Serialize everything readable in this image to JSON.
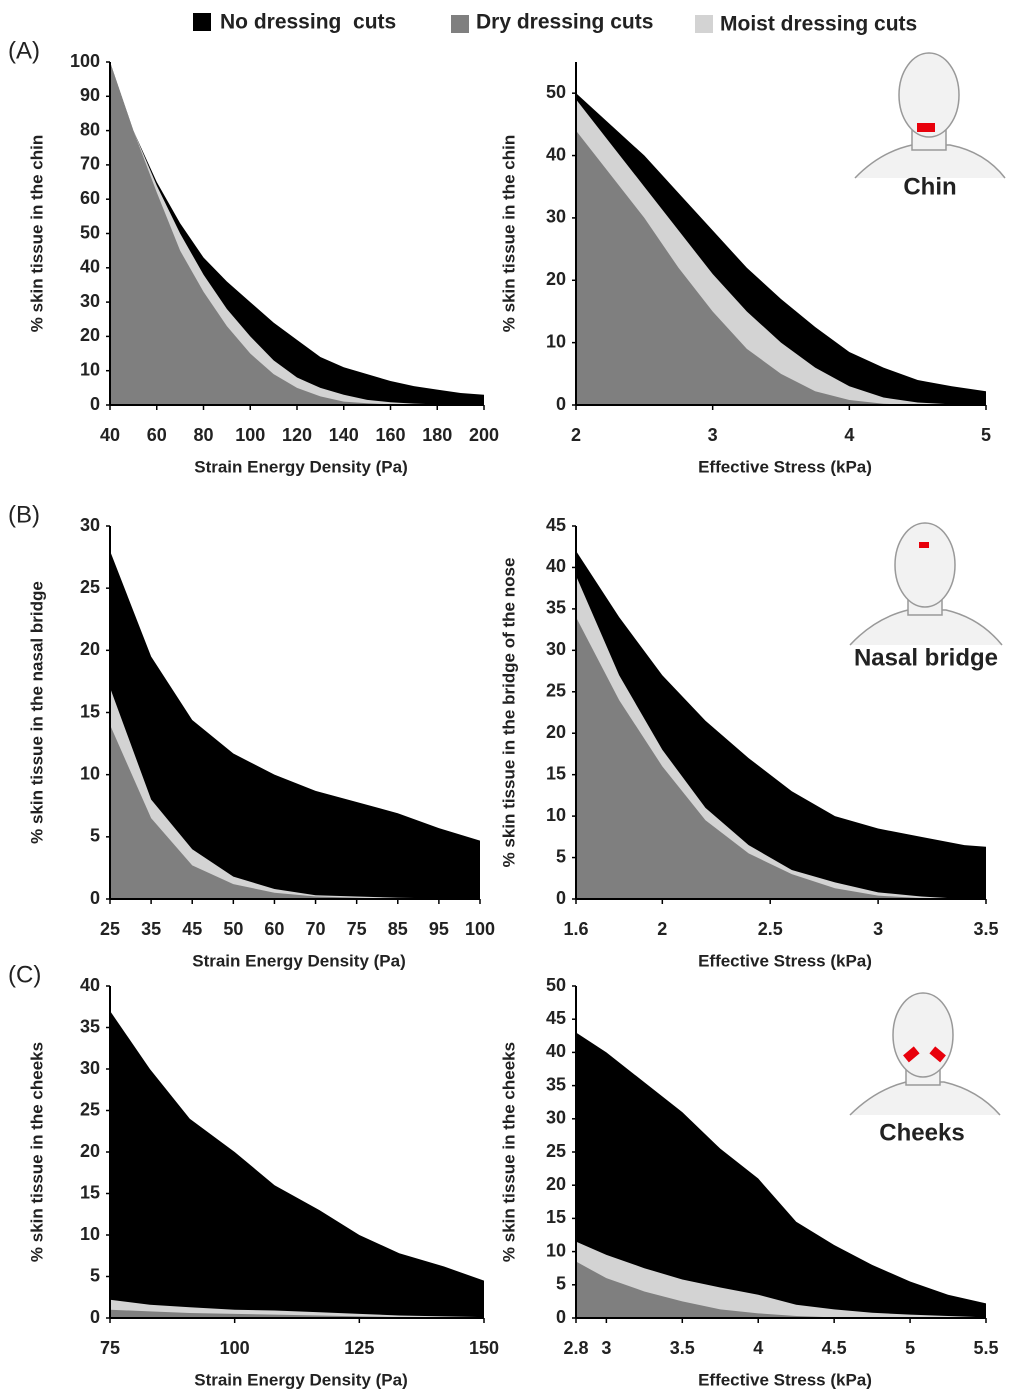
{
  "chart_data": [
    {
      "type": "area",
      "panel_label": "(A)",
      "xlabel": "Strain Energy Density (Pa)",
      "ylabel": "% skin tissue in the chin",
      "x": [
        40,
        50,
        60,
        70,
        80,
        90,
        100,
        110,
        120,
        130,
        140,
        150,
        160,
        170,
        180,
        190,
        200
      ],
      "series": [
        {
          "name": "No dressing  cuts",
          "color": "#000000",
          "values": [
            100,
            80,
            65,
            53,
            43,
            36,
            30,
            24,
            19,
            14,
            11,
            9,
            7,
            5.5,
            4.5,
            3.5,
            3
          ]
        },
        {
          "name": "Dry dressing cuts",
          "color": "#7f7f7f",
          "values": [
            100,
            80,
            62,
            45,
            33,
            23,
            15,
            9,
            5,
            2.5,
            1,
            0.5,
            0.2,
            0,
            0,
            0,
            0
          ]
        },
        {
          "name": "Moist dressing cuts",
          "color": "#d3d3d3",
          "values": [
            100,
            80,
            64,
            50,
            38,
            28,
            20,
            13,
            8,
            5,
            3,
            1.5,
            0.8,
            0.4,
            0.2,
            0.1,
            0
          ]
        }
      ],
      "xlim": [
        40,
        200
      ],
      "xticks": [
        40,
        60,
        80,
        100,
        120,
        140,
        160,
        180,
        200
      ],
      "ylim": [
        0,
        100
      ],
      "yticks": [
        0,
        10,
        20,
        30,
        40,
        50,
        60,
        70,
        80,
        90,
        100
      ],
      "grid": false
    },
    {
      "type": "area",
      "xlabel": "Effective Stress (kPa)",
      "ylabel": "% skin tissue in the chin",
      "annotation": "Chin",
      "x": [
        2,
        2.25,
        2.5,
        2.75,
        3,
        3.25,
        3.5,
        3.75,
        4,
        4.25,
        4.5,
        4.75,
        5
      ],
      "series": [
        {
          "name": "No dressing  cuts",
          "color": "#000000",
          "values": [
            50,
            45,
            40,
            34,
            28,
            22,
            17,
            12.5,
            8.5,
            6,
            4,
            3,
            2.2
          ]
        },
        {
          "name": "Dry dressing cuts",
          "color": "#7f7f7f",
          "values": [
            44,
            37,
            30,
            22,
            15,
            9,
            5,
            2.2,
            0.8,
            0.2,
            0,
            0,
            0
          ]
        },
        {
          "name": "Moist dressing cuts",
          "color": "#d3d3d3",
          "values": [
            49,
            42,
            35,
            28,
            21,
            15,
            10,
            6,
            3,
            1.2,
            0.4,
            0.1,
            0
          ]
        }
      ],
      "xlim": [
        2,
        5
      ],
      "xticks": [
        2,
        3,
        4,
        5
      ],
      "ylim": [
        0,
        55
      ],
      "yticks": [
        0,
        10,
        20,
        30,
        40,
        50
      ],
      "grid": false
    },
    {
      "type": "area",
      "panel_label": "(B)",
      "xlabel": "Strain Energy Density (Pa)",
      "ylabel": "% skin tissue in the nasal bridge",
      "categories": [
        "25",
        "35",
        "45",
        "50",
        "60",
        "70",
        "75",
        "85",
        "95",
        "100"
      ],
      "series": [
        {
          "name": "No dressing  cuts",
          "color": "#000000",
          "values": [
            28,
            19.5,
            14.4,
            11.7,
            10,
            8.7,
            7.8,
            6.9,
            5.7,
            4.7
          ]
        },
        {
          "name": "Dry dressing cuts",
          "color": "#7f7f7f",
          "values": [
            14,
            6.5,
            2.7,
            1.2,
            0.5,
            0.2,
            0.1,
            0,
            0,
            0
          ]
        },
        {
          "name": "Moist dressing cuts",
          "color": "#d3d3d3",
          "values": [
            17,
            8,
            4,
            1.8,
            0.8,
            0.3,
            0.2,
            0.1,
            0.05,
            0
          ]
        }
      ],
      "ylim": [
        0,
        30
      ],
      "yticks": [
        0,
        5,
        10,
        15,
        20,
        25,
        30
      ],
      "grid": false
    },
    {
      "type": "area",
      "xlabel": "Effective Stress (kPa)",
      "ylabel": "% skin tissue in the bridge of the nose",
      "annotation": "Nasal bridge",
      "x": [
        1.6,
        1.8,
        2.0,
        2.2,
        2.4,
        2.6,
        2.8,
        3.0,
        3.2,
        3.4,
        3.5
      ],
      "series": [
        {
          "name": "No dressing  cuts",
          "color": "#000000",
          "values": [
            42,
            34,
            27,
            21.5,
            17,
            13,
            10,
            8.5,
            7.5,
            6.5,
            6.3
          ]
        },
        {
          "name": "Dry dressing cuts",
          "color": "#7f7f7f",
          "values": [
            34,
            24,
            16,
            9.5,
            5.5,
            3,
            1.3,
            0.4,
            0.1,
            0,
            0
          ]
        },
        {
          "name": "Moist dressing cuts",
          "color": "#d3d3d3",
          "values": [
            39,
            27,
            18,
            11,
            6.5,
            3.5,
            2,
            0.8,
            0.3,
            0,
            0
          ]
        }
      ],
      "xlim": [
        1.6,
        3.5
      ],
      "xticks": [
        1.6,
        2,
        2.5,
        3,
        3.5
      ],
      "ylim": [
        0,
        45
      ],
      "yticks": [
        0,
        5,
        10,
        15,
        20,
        25,
        30,
        35,
        40,
        45
      ],
      "grid": false
    },
    {
      "type": "area",
      "panel_label": "(C)",
      "xlabel": "Strain Energy Density (Pa)",
      "ylabel": "% skin tissue in the cheeks",
      "x": [
        75,
        83,
        91,
        100,
        108,
        117,
        125,
        133,
        142,
        150
      ],
      "series": [
        {
          "name": "No dressing  cuts",
          "color": "#000000",
          "values": [
            37,
            30,
            24,
            20,
            16,
            13,
            10,
            7.8,
            6.2,
            4.5
          ]
        },
        {
          "name": "Dry dressing cuts",
          "color": "#7f7f7f",
          "values": [
            1,
            0.8,
            0.6,
            0.5,
            0.4,
            0.3,
            0.2,
            0.1,
            0,
            0
          ]
        },
        {
          "name": "Moist dressing cuts",
          "color": "#d3d3d3",
          "values": [
            2.2,
            1.6,
            1.3,
            1,
            0.9,
            0.7,
            0.5,
            0.3,
            0.2,
            0.1
          ]
        }
      ],
      "xlim": [
        75,
        150
      ],
      "xticks": [
        75,
        100,
        125,
        150
      ],
      "ylim": [
        0,
        40
      ],
      "yticks": [
        0,
        5,
        10,
        15,
        20,
        25,
        30,
        35,
        40
      ],
      "grid": false
    },
    {
      "type": "area",
      "xlabel": "Effective Stress (kPa)",
      "ylabel": "% skin tissue in the cheeks",
      "annotation": "Cheeks",
      "x": [
        2.8,
        3,
        3.25,
        3.5,
        3.75,
        4,
        4.25,
        4.5,
        4.75,
        5,
        5.25,
        5.5
      ],
      "series": [
        {
          "name": "No dressing  cuts",
          "color": "#000000",
          "values": [
            43,
            40,
            35.5,
            31,
            25.5,
            21,
            14.5,
            11,
            8,
            5.5,
            3.5,
            2.2
          ]
        },
        {
          "name": "Dry dressing cuts",
          "color": "#7f7f7f",
          "values": [
            8.5,
            6,
            4,
            2.5,
            1.3,
            0.7,
            0.3,
            0.1,
            0,
            0,
            0,
            0
          ]
        },
        {
          "name": "Moist dressing cuts",
          "color": "#d3d3d3",
          "values": [
            11.5,
            9.5,
            7.5,
            5.8,
            4.6,
            3.5,
            2,
            1.3,
            0.8,
            0.5,
            0.3,
            0.1
          ]
        }
      ],
      "xlim": [
        2.8,
        5.5
      ],
      "xticks": [
        2.8,
        3,
        3.5,
        4,
        4.5,
        5,
        5.5
      ],
      "ylim": [
        0,
        50
      ],
      "yticks": [
        0,
        5,
        10,
        15,
        20,
        25,
        30,
        35,
        40,
        45,
        50
      ],
      "grid": false
    }
  ]
}
